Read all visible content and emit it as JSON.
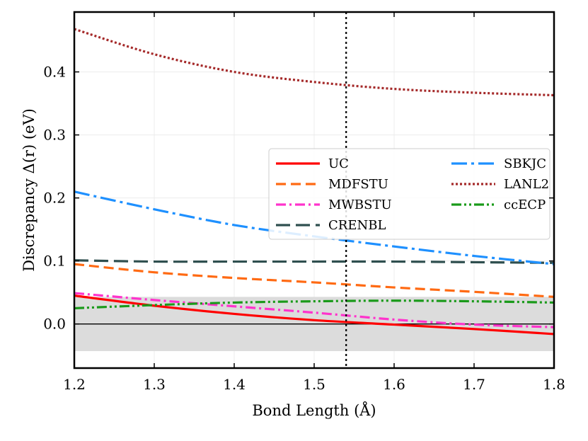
{
  "chart_data": {
    "type": "line",
    "xlabel": "Bond Length (Å)",
    "ylabel": "Discrepancy Δ(r) (eV)",
    "xlim": [
      1.2,
      1.8
    ],
    "ylim": [
      -0.07,
      0.495
    ],
    "xticks": [
      1.2,
      1.3,
      1.4,
      1.5,
      1.6,
      1.7,
      1.8
    ],
    "xtick_labels": [
      "1.2",
      "1.3",
      "1.4",
      "1.5",
      "1.6",
      "1.7",
      "1.8"
    ],
    "yticks": [
      0.0,
      0.1,
      0.2,
      0.3,
      0.4
    ],
    "ytick_labels": [
      "0.0",
      "0.1",
      "0.2",
      "0.3",
      "0.4"
    ],
    "grid": true,
    "legend_position": "center-right",
    "reference_vline_x": 1.54,
    "zero_line_y": 0.0,
    "shaded_band": [
      -0.043,
      0.043
    ],
    "x": [
      1.2,
      1.3,
      1.4,
      1.5,
      1.6,
      1.7,
      1.8
    ],
    "series": [
      {
        "name": "UC",
        "color": "#ff0000",
        "dash": "solid",
        "values": [
          0.045,
          0.029,
          0.016,
          0.006,
          -0.001,
          -0.008,
          -0.016
        ]
      },
      {
        "name": "MDFSTU",
        "color": "#ff6a13",
        "dash": "dashed",
        "values": [
          0.095,
          0.082,
          0.073,
          0.066,
          0.058,
          0.051,
          0.043
        ]
      },
      {
        "name": "MWBSTU",
        "color": "#ff33cc",
        "dash": "dashdot",
        "values": [
          0.049,
          0.038,
          0.028,
          0.018,
          0.007,
          -0.001,
          -0.005
        ]
      },
      {
        "name": "CRENBL",
        "color": "#2f4f4f",
        "dash": "longdash",
        "values": [
          0.101,
          0.099,
          0.099,
          0.099,
          0.099,
          0.098,
          0.097
        ]
      },
      {
        "name": "SBKJC",
        "color": "#1e90ff",
        "dash": "longdashdot",
        "values": [
          0.21,
          0.182,
          0.157,
          0.139,
          0.123,
          0.108,
          0.095
        ]
      },
      {
        "name": "LANL2",
        "color": "#a52a2a",
        "dash": "dotted",
        "values": [
          0.468,
          0.428,
          0.4,
          0.384,
          0.373,
          0.367,
          0.363
        ]
      },
      {
        "name": "ccECP",
        "color": "#1a9a1a",
        "dash": "dashdotdot",
        "values": [
          0.025,
          0.03,
          0.034,
          0.036,
          0.037,
          0.036,
          0.034
        ]
      }
    ]
  }
}
